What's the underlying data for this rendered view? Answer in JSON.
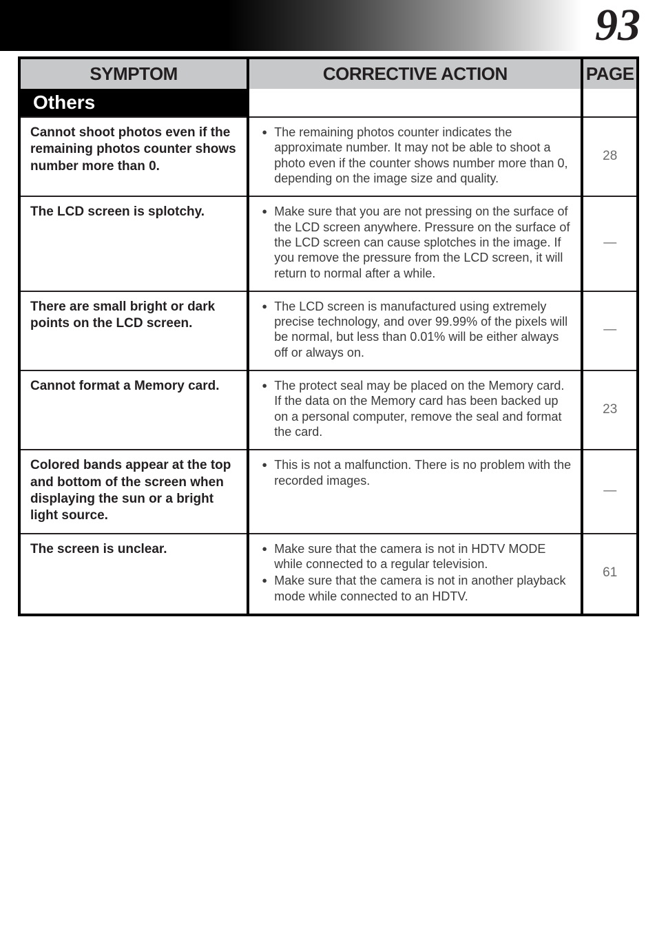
{
  "page_number": "93",
  "columns": {
    "symptom": "SYMPTOM",
    "action": "CORRECTIVE ACTION",
    "page": "PAGE"
  },
  "section": {
    "title": "Others"
  },
  "rows": [
    {
      "symptom": "Cannot shoot photos even if the remaining photos counter shows number more than 0.",
      "actions": [
        "The remaining photos counter indicates the approximate number. It may not be able to shoot a photo even if the counter shows number more than 0, depending on the image size and quality."
      ],
      "page": "28"
    },
    {
      "symptom": "The LCD screen is splotchy.",
      "actions": [
        "Make sure that you are not pressing on the surface of the LCD screen anywhere. Pressure on the surface of the LCD screen can cause splotches in the image. If you remove the pressure from the LCD screen, it will return to normal after a while."
      ],
      "page": "—"
    },
    {
      "symptom": "There are small bright or dark points on the LCD screen.",
      "actions": [
        "The LCD screen is manufactured using extremely precise technology, and over 99.99% of the pixels will be normal, but less than 0.01% will be either always off or always on."
      ],
      "page": "—"
    },
    {
      "symptom": "Cannot format a Memory card.",
      "actions": [
        "The protect seal may be placed on the Memory card. If the data on the Memory card has been backed up on a personal computer, remove the seal and format the card."
      ],
      "page": "23"
    },
    {
      "symptom": "Colored bands appear at the top and bottom of the screen when displaying the sun or a bright light source.",
      "actions": [
        "This is not a malfunction. There is no problem with the recorded images."
      ],
      "page": "—"
    },
    {
      "symptom": "The screen is unclear.",
      "actions": [
        "Make sure that the camera is not in HDTV MODE while connected to a regular television.",
        "Make sure that the camera is not in another playback mode while connected to an HDTV."
      ],
      "page": "61"
    }
  ]
}
